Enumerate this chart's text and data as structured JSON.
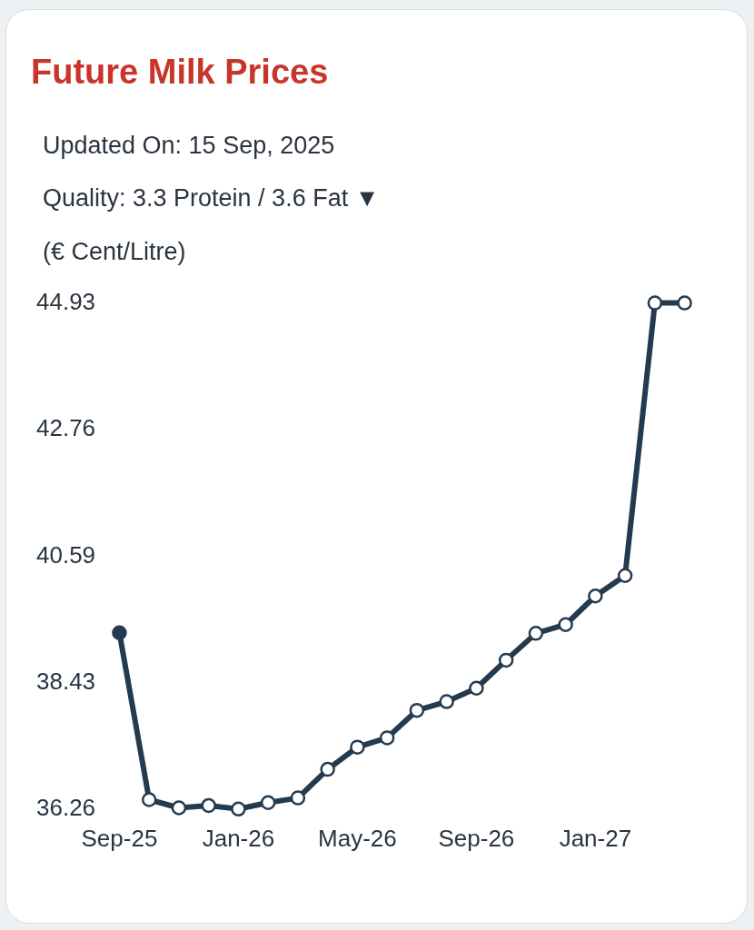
{
  "chart_data": {
    "type": "line",
    "title": "Future Milk Prices",
    "subtitle": "Updated On: 15 Sep, 2025",
    "annotations": [
      "Quality: 3.3 Protein / 3.6 Fat ▼"
    ],
    "ylabel": "(€ Cent/Litre)",
    "categories": [
      "Sep-25",
      null,
      null,
      null,
      "Jan-26",
      null,
      null,
      null,
      "May-26",
      null,
      null,
      null,
      "Sep-26",
      null,
      null,
      null,
      "Jan-27",
      null,
      null,
      null
    ],
    "series": [
      {
        "color": "#243a4f",
        "colors": [
          "#243a4f",
          "#ffffff",
          "#ffffff",
          "#ffffff",
          "#ffffff",
          "#ffffff",
          "#ffffff",
          "#ffffff",
          "#ffffff",
          "#ffffff",
          "#ffffff",
          "#ffffff",
          "#ffffff",
          "#ffffff",
          "#ffffff",
          "#ffffff",
          "#ffffff",
          "#ffffff",
          "#ffffff",
          "#ffffff"
        ],
        "values": [
          39.28,
          36.42,
          36.28,
          36.32,
          36.26,
          36.37,
          36.45,
          36.94,
          37.32,
          37.48,
          37.95,
          38.1,
          38.33,
          38.81,
          39.27,
          39.42,
          39.91,
          40.26,
          44.93,
          44.93
        ]
      }
    ],
    "ylim": [
      36.26,
      44.93
    ],
    "yticks": [
      36.26,
      38.43,
      40.59,
      42.76,
      44.93
    ],
    "grid": false,
    "legend": false,
    "marker": "circle",
    "line_style": "solid"
  }
}
